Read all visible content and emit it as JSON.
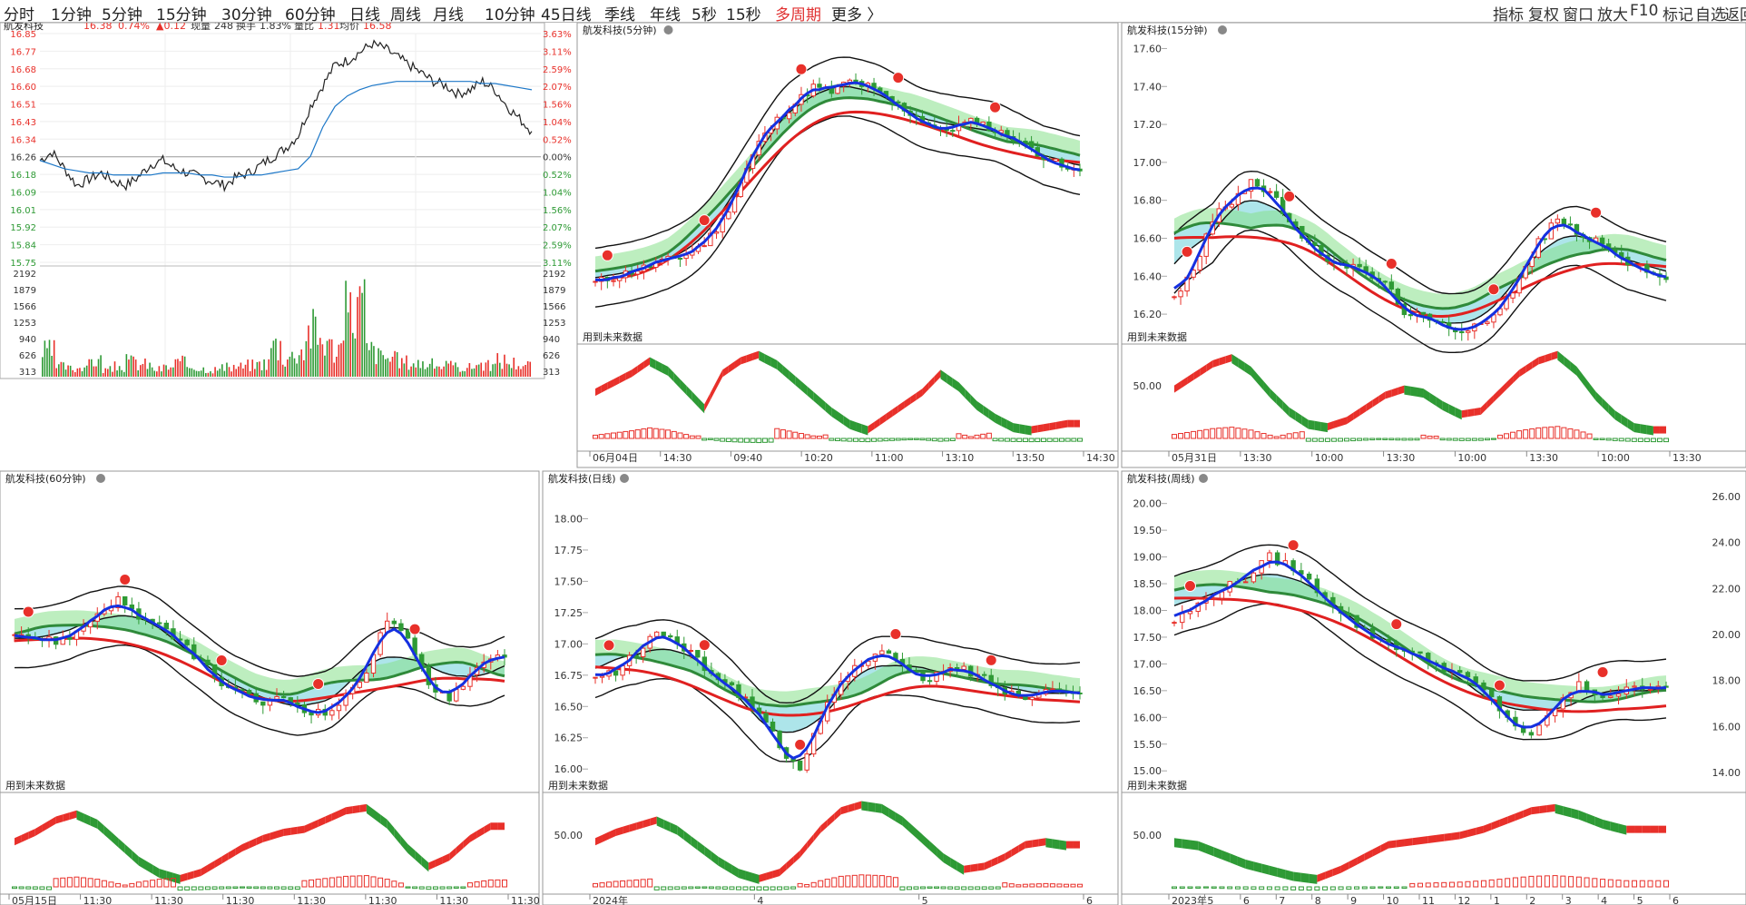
{
  "toolbar": {
    "periods": [
      "分时",
      "1分钟",
      "5分钟",
      "15分钟",
      "30分钟",
      "60分钟",
      "日线",
      "周线",
      "月线",
      "10分钟",
      "45日线",
      "季线",
      "年线",
      "5秒",
      "15秒",
      "多周期",
      "更多 〉"
    ],
    "active_index": 15,
    "right_tools": [
      "指标",
      "复权",
      "窗口",
      "放大",
      "F10",
      "标记",
      "自选",
      "返回"
    ]
  },
  "colors": {
    "up": "#e8302a",
    "down": "#2e9a35",
    "ma_blue": "#1530e0",
    "cyan_band": "#9fe0e6",
    "green_band": "#86e08a",
    "grid": "#dddddd",
    "axis": "#888888"
  },
  "chart_data": [
    {
      "id": "intraday",
      "type": "line",
      "title": "航发科技",
      "quote": {
        "price": "16.38",
        "pct": "0.74%",
        "change": "▲0.12",
        "vol_label": "现量",
        "vol": "248",
        "turn_label": "换手",
        "turn": "1.83%",
        "ratio_label": "量比",
        "ratio": "1.31",
        "avg_label": "均价",
        "avg": "16.58"
      },
      "price_ticks": [
        "16.85",
        "16.77",
        "16.68",
        "16.60",
        "16.51",
        "16.43",
        "16.34",
        "16.26",
        "16.18",
        "16.09",
        "16.01",
        "15.92",
        "15.84",
        "15.75"
      ],
      "pct_ticks": [
        "3.63%",
        "3.11%",
        "2.59%",
        "2.07%",
        "1.56%",
        "1.04%",
        "0.52%",
        "0.00%",
        "0.52%",
        "1.04%",
        "1.56%",
        "2.07%",
        "2.59%",
        "3.11%"
      ],
      "vol_ticks": [
        "2192",
        "1879",
        "1566",
        "1253",
        "940",
        "626",
        "313"
      ],
      "ylim": [
        15.75,
        16.85
      ],
      "prev_close": 16.26,
      "price_series": [
        16.24,
        16.28,
        16.2,
        16.12,
        16.15,
        16.18,
        16.14,
        16.12,
        16.16,
        16.22,
        16.24,
        16.2,
        16.18,
        16.16,
        16.14,
        16.12,
        16.16,
        16.18,
        16.22,
        16.26,
        16.3,
        16.36,
        16.5,
        16.6,
        16.7,
        16.72,
        16.76,
        16.8,
        16.78,
        16.74,
        16.7,
        16.66,
        16.62,
        16.6,
        16.56,
        16.58,
        16.62,
        16.58,
        16.5,
        16.44,
        16.38
      ],
      "avg_series": [
        16.24,
        16.22,
        16.2,
        16.19,
        16.18,
        16.18,
        16.17,
        16.17,
        16.17,
        16.17,
        16.18,
        16.18,
        16.18,
        16.17,
        16.17,
        16.16,
        16.16,
        16.17,
        16.17,
        16.18,
        16.19,
        16.2,
        16.26,
        16.4,
        16.5,
        16.55,
        16.58,
        16.6,
        16.61,
        16.62,
        16.62,
        16.62,
        16.62,
        16.62,
        16.62,
        16.62,
        16.61,
        16.61,
        16.6,
        16.59,
        16.58
      ],
      "volume": [
        620,
        260,
        210,
        300,
        420,
        180,
        260,
        380,
        320,
        190,
        240,
        350,
        280,
        210,
        190,
        230,
        260,
        300,
        350,
        820,
        520,
        680,
        1190,
        980,
        760,
        1620,
        1880,
        680,
        520,
        430,
        380,
        350,
        310,
        290,
        260,
        240,
        330,
        280,
        420,
        360,
        300
      ]
    },
    {
      "id": "m5",
      "type": "candlestick",
      "title": "航发科技(5分钟)",
      "overlay_label": "用到未来数据",
      "y_ticks": [],
      "osc_ticks": [],
      "x_labels": [
        "06月04日",
        "14:30",
        "09:40",
        "10:20",
        "11:00",
        "13:10",
        "13:50",
        "14:30"
      ],
      "ylim": [
        15.9,
        16.95
      ],
      "closes": [
        16.08,
        16.1,
        16.12,
        16.14,
        16.16,
        16.18,
        16.22,
        16.3,
        16.44,
        16.58,
        16.66,
        16.72,
        16.78,
        16.76,
        16.8,
        16.78,
        16.74,
        16.7,
        16.66,
        16.62,
        16.64,
        16.66,
        16.62,
        16.6,
        16.56,
        16.52,
        16.48
      ],
      "osc": [
        0.2,
        0.5,
        0.8,
        1.2,
        0.9,
        0.3,
        -0.3,
        0.8,
        1.2,
        1.4,
        1.1,
        0.6,
        0.1,
        -0.4,
        -0.8,
        -1.0,
        -0.6,
        -0.2,
        0.2,
        0.8,
        0.4,
        -0.2,
        -0.6,
        -0.9,
        -1.0,
        -0.9,
        -0.8
      ],
      "bar_sign": [
        1,
        1,
        1,
        1,
        1,
        1,
        -1,
        -1,
        -1,
        -1,
        1,
        1,
        1,
        -1,
        -1,
        -1,
        -1,
        -1,
        -1,
        -1,
        1,
        1,
        -1,
        -1,
        -1,
        -1,
        -1
      ]
    },
    {
      "id": "m15",
      "type": "candlestick",
      "title": "航发科技(15分钟)",
      "overlay_label": "用到未来数据",
      "y_ticks": [
        "17.60",
        "17.40",
        "17.20",
        "17.00",
        "16.80",
        "16.60",
        "16.40",
        "16.20"
      ],
      "osc_ticks": [
        "50.00"
      ],
      "x_labels": [
        "05月31日",
        "13:30",
        "10:00",
        "13:30",
        "10:00",
        "13:30",
        "10:00",
        "13:30"
      ],
      "ylim": [
        16.1,
        17.65
      ],
      "closes": [
        16.3,
        16.42,
        16.7,
        16.8,
        16.9,
        16.84,
        16.7,
        16.56,
        16.5,
        16.46,
        16.42,
        16.36,
        16.22,
        16.18,
        16.14,
        16.12,
        16.16,
        16.22,
        16.38,
        16.58,
        16.7,
        16.64,
        16.58,
        16.52,
        16.46,
        16.4
      ],
      "osc": [
        0.3,
        0.7,
        1.1,
        1.3,
        0.9,
        0.2,
        -0.4,
        -0.8,
        -0.9,
        -0.7,
        -0.3,
        0.1,
        0.3,
        0.2,
        -0.2,
        -0.5,
        -0.4,
        0.2,
        0.8,
        1.2,
        1.4,
        0.9,
        0.1,
        -0.5,
        -0.9,
        -1.0
      ],
      "bar_sign": [
        1,
        1,
        1,
        1,
        1,
        1,
        1,
        -1,
        -1,
        -1,
        -1,
        -1,
        -1,
        1,
        -1,
        -1,
        -1,
        1,
        1,
        1,
        1,
        1,
        -1,
        -1,
        -1,
        -1
      ]
    },
    {
      "id": "m60",
      "type": "candlestick",
      "title": "航发科技(60分钟)",
      "overlay_label": "用到未来数据",
      "y_ticks": [],
      "osc_ticks": [],
      "x_labels": [
        "05月15日",
        "11:30",
        "11:30",
        "11:30",
        "11:30",
        "11:30",
        "11:30",
        "11:30"
      ],
      "ylim": [
        15.7,
        17.8
      ],
      "closes": [
        16.78,
        16.72,
        16.7,
        16.76,
        16.9,
        17.0,
        16.88,
        16.8,
        16.7,
        16.56,
        16.4,
        16.32,
        16.26,
        16.3,
        16.22,
        16.18,
        16.3,
        16.5,
        16.86,
        16.7,
        16.4,
        16.3,
        16.46,
        16.6
      ],
      "osc": [
        0.2,
        0.5,
        0.9,
        1.1,
        0.8,
        0.2,
        -0.4,
        -0.8,
        -1.0,
        -0.8,
        -0.4,
        0.0,
        0.3,
        0.5,
        0.6,
        0.9,
        1.2,
        1.3,
        0.8,
        0.0,
        -0.6,
        -0.3,
        0.3,
        0.7
      ],
      "bar_sign": [
        -1,
        -1,
        1,
        1,
        1,
        1,
        1,
        1,
        -1,
        -1,
        -1,
        -1,
        -1,
        -1,
        1,
        1,
        1,
        1,
        1,
        -1,
        -1,
        -1,
        1,
        1
      ]
    },
    {
      "id": "day",
      "type": "candlestick",
      "title": "航发科技(日线)",
      "overlay_label": "用到未来数据",
      "y_ticks": [
        "18.00",
        "17.75",
        "17.50",
        "17.25",
        "17.00",
        "16.75",
        "16.50",
        "16.25",
        "16.00"
      ],
      "osc_ticks": [
        "50.00"
      ],
      "x_labels": [
        "2024年",
        "4",
        "5",
        "6"
      ],
      "ylim": [
        15.9,
        18.25
      ],
      "closes": [
        16.72,
        16.78,
        16.92,
        17.1,
        17.02,
        16.86,
        16.74,
        16.6,
        16.46,
        16.2,
        15.96,
        16.4,
        16.7,
        16.86,
        16.96,
        16.82,
        16.7,
        16.78,
        16.8,
        16.72,
        16.62,
        16.58,
        16.66,
        16.6
      ],
      "osc": [
        0.2,
        0.5,
        0.7,
        0.9,
        0.6,
        0.1,
        -0.4,
        -0.8,
        -1.0,
        -0.8,
        -0.2,
        0.6,
        1.2,
        1.4,
        1.3,
        0.9,
        0.3,
        -0.3,
        -0.7,
        -0.6,
        -0.3,
        0.1,
        0.2,
        0.1
      ],
      "bar_sign": [
        1,
        1,
        1,
        -1,
        -1,
        -1,
        -1,
        -1,
        -1,
        -1,
        1,
        1,
        1,
        1,
        1,
        -1,
        -1,
        -1,
        -1,
        -1,
        1,
        1,
        1,
        1
      ]
    },
    {
      "id": "week",
      "type": "candlestick",
      "title": "航发科技(周线)",
      "overlay_label": "用到未来数据",
      "y_ticks": [
        "20.00",
        "19.50",
        "19.00",
        "18.50",
        "18.00",
        "17.50",
        "17.00",
        "16.50",
        "16.00",
        "15.50",
        "15.00"
      ],
      "y_ticks_right": [
        "26.00",
        "24.00",
        "22.00",
        "20.00",
        "18.00",
        "16.00",
        "14.00"
      ],
      "osc_ticks": [
        "50.00"
      ],
      "x_labels": [
        "2023年",
        "5",
        "6",
        "7",
        "8",
        "9",
        "10",
        "11",
        "12",
        "1",
        "2",
        "3",
        "4",
        "5",
        "6"
      ],
      "ylim": [
        14.8,
        20.3
      ],
      "closes": [
        17.8,
        18.1,
        18.4,
        18.6,
        19.0,
        18.8,
        18.4,
        18.0,
        17.6,
        17.4,
        17.2,
        17.0,
        16.8,
        16.5,
        16.0,
        15.6,
        16.2,
        16.6,
        16.4,
        16.5,
        16.6
      ],
      "osc": [
        0.2,
        0.1,
        -0.2,
        -0.5,
        -0.7,
        -0.9,
        -1.0,
        -0.7,
        -0.3,
        0.1,
        0.2,
        0.3,
        0.4,
        0.6,
        0.9,
        1.2,
        1.3,
        1.1,
        0.8,
        0.6,
        0.6
      ],
      "bar_sign": [
        -1,
        -1,
        -1,
        -1,
        -1,
        -1,
        -1,
        -1,
        -1,
        -1,
        1,
        1,
        1,
        1,
        1,
        1,
        1,
        1,
        1,
        1,
        1
      ]
    }
  ]
}
